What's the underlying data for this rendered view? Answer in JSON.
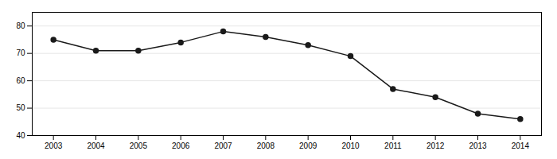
{
  "chart_data": {
    "type": "line",
    "x": [
      2003,
      2004,
      2005,
      2006,
      2007,
      2008,
      2009,
      2010,
      2011,
      2012,
      2013,
      2014
    ],
    "values": [
      75,
      71,
      71,
      74,
      78,
      76,
      73,
      69,
      57,
      54,
      48,
      46
    ],
    "color": "#1a1a1a",
    "marker": "circle",
    "xlim": [
      2002.5,
      2014.5
    ],
    "xticks": [
      2003,
      2004,
      2005,
      2006,
      2007,
      2008,
      2009,
      2010,
      2011,
      2012,
      2013,
      2014
    ],
    "ylim": [
      40,
      85
    ],
    "yticks": [
      40,
      50,
      60,
      70,
      80
    ],
    "grid": true
  }
}
